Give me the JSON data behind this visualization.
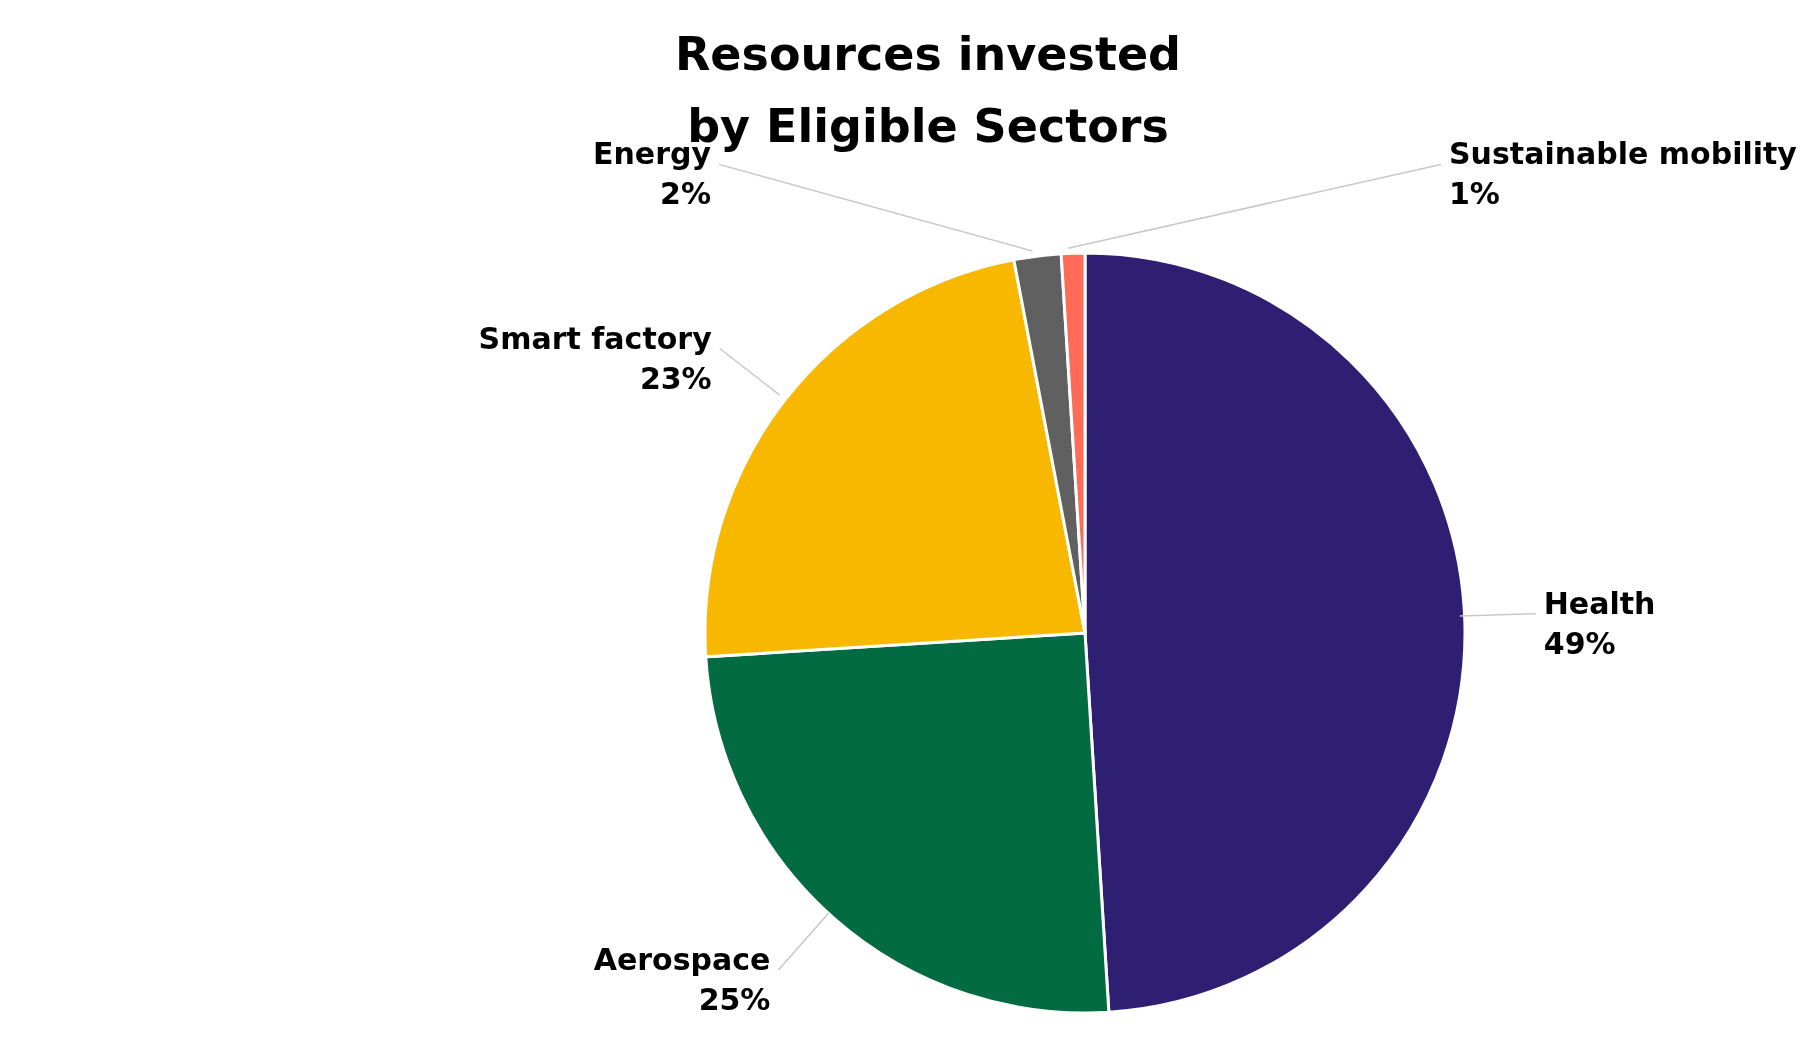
{
  "chart_data": {
    "type": "pie",
    "title": "Resources invested by Eligible Sectors",
    "categories": [
      "Health",
      "Aerospace",
      "Smart factory",
      "Energy",
      "Sustainable mobility"
    ],
    "values": [
      49,
      25,
      23,
      2,
      1
    ],
    "value_labels": [
      "49%",
      "25%",
      "23%",
      "2%",
      "1%"
    ],
    "colors": [
      "#2e1f72",
      "#036b41",
      "#f8b800",
      "#606060",
      "#ff6b57"
    ],
    "legend": false
  }
}
